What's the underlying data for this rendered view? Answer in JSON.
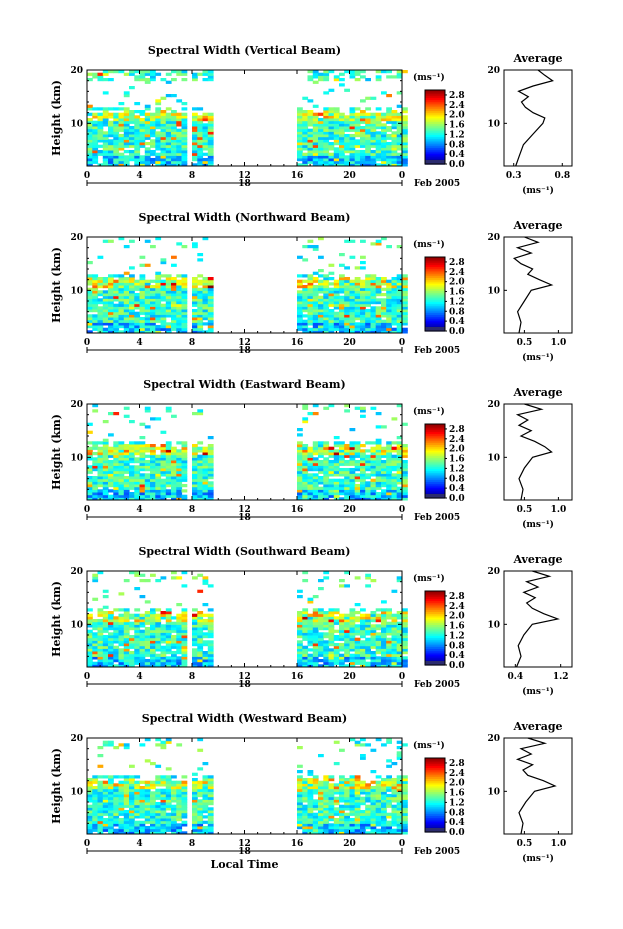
{
  "chart_data": [
    {
      "type": "heatmap",
      "title": "Spectral Width (Vertical Beam)",
      "xlabel": "",
      "ylabel": "Height (km)",
      "xlim": [
        0,
        24
      ],
      "ylim": [
        2,
        20
      ],
      "x_ticks": [
        "0",
        "4",
        "8",
        "12",
        "16",
        "20",
        "0"
      ],
      "y_ticks": [
        "20",
        "10"
      ],
      "date_marker": "18",
      "date_label": "Feb 2005",
      "colorbar": {
        "unit": "(ms⁻¹)",
        "ticks": [
          "2.8",
          "2.4",
          "2.0",
          "1.6",
          "1.2",
          "0.8",
          "0.4",
          "0.0"
        ],
        "range": [
          0,
          3.0
        ]
      },
      "data_gaps_hours": [
        [
          7.8,
          8.1
        ],
        [
          9.7,
          15.9
        ]
      ],
      "average_profile": {
        "title": "Average",
        "xlabel": "(ms⁻¹)",
        "x_ticks": [
          "0.3",
          "0.8"
        ],
        "xlim": [
          0.2,
          0.9
        ],
        "height_km": [
          2,
          4,
          6,
          8,
          10,
          11,
          12,
          13,
          14,
          15,
          16,
          17,
          18,
          19,
          20
        ],
        "values": [
          0.32,
          0.36,
          0.4,
          0.5,
          0.6,
          0.62,
          0.5,
          0.42,
          0.38,
          0.45,
          0.35,
          0.5,
          0.7,
          0.62,
          0.55
        ]
      }
    },
    {
      "type": "heatmap",
      "title": "Spectral Width (Northward Beam)",
      "xlabel": "",
      "ylabel": "Height (km)",
      "xlim": [
        0,
        24
      ],
      "ylim": [
        2,
        20
      ],
      "x_ticks": [
        "0",
        "4",
        "8",
        "12",
        "16",
        "20",
        "0"
      ],
      "y_ticks": [
        "20",
        "10"
      ],
      "date_marker": "18",
      "date_label": "Feb 2005",
      "colorbar": {
        "unit": "(ms⁻¹)",
        "ticks": [
          "2.8",
          "2.4",
          "2.0",
          "1.6",
          "1.2",
          "0.8",
          "0.4",
          "0.0"
        ],
        "range": [
          0,
          3.0
        ]
      },
      "data_gaps_hours": [
        [
          7.8,
          8.1
        ],
        [
          9.7,
          15.9
        ]
      ],
      "average_profile": {
        "title": "Average",
        "xlabel": "(ms⁻¹)",
        "x_ticks": [
          "0.5",
          "1.0"
        ],
        "xlim": [
          0.2,
          1.2
        ],
        "height_km": [
          2,
          4,
          6,
          8,
          10,
          11,
          12,
          13,
          14,
          15,
          16,
          17,
          18,
          19,
          20
        ],
        "values": [
          0.42,
          0.45,
          0.4,
          0.5,
          0.6,
          0.9,
          0.72,
          0.55,
          0.62,
          0.45,
          0.35,
          0.6,
          0.4,
          0.7,
          0.5
        ]
      }
    },
    {
      "type": "heatmap",
      "title": "Spectral Width (Eastward Beam)",
      "xlabel": "",
      "ylabel": "Height (km)",
      "xlim": [
        0,
        24
      ],
      "ylim": [
        2,
        20
      ],
      "x_ticks": [
        "0",
        "4",
        "8",
        "12",
        "16",
        "20",
        "0"
      ],
      "y_ticks": [
        "20",
        "10"
      ],
      "date_marker": "18",
      "date_label": "Feb 2005",
      "colorbar": {
        "unit": "(ms⁻¹)",
        "ticks": [
          "2.8",
          "2.4",
          "2.0",
          "1.6",
          "1.2",
          "0.8",
          "0.4",
          "0.0"
        ],
        "range": [
          0,
          3.0
        ]
      },
      "data_gaps_hours": [
        [
          7.8,
          8.1
        ],
        [
          9.7,
          15.9
        ]
      ],
      "average_profile": {
        "title": "Average",
        "xlabel": "(ms⁻¹)",
        "x_ticks": [
          "0.5",
          "1.0"
        ],
        "xlim": [
          0.2,
          1.2
        ],
        "height_km": [
          2,
          4,
          6,
          8,
          10,
          11,
          12,
          13,
          14,
          15,
          16,
          17,
          18,
          19,
          20
        ],
        "values": [
          0.45,
          0.48,
          0.42,
          0.5,
          0.62,
          0.9,
          0.8,
          0.65,
          0.45,
          0.6,
          0.42,
          0.55,
          0.4,
          0.75,
          0.5
        ]
      }
    },
    {
      "type": "heatmap",
      "title": "Spectral Width (Southward Beam)",
      "xlabel": "",
      "ylabel": "Height (km)",
      "xlim": [
        0,
        24
      ],
      "ylim": [
        2,
        20
      ],
      "x_ticks": [
        "0",
        "4",
        "8",
        "12",
        "16",
        "20",
        "0"
      ],
      "y_ticks": [
        "20",
        "10"
      ],
      "date_marker": "18",
      "date_label": "Feb 2005",
      "colorbar": {
        "unit": "(ms⁻¹)",
        "ticks": [
          "2.8",
          "2.4",
          "2.0",
          "1.6",
          "1.2",
          "0.8",
          "0.4",
          "0.0"
        ],
        "range": [
          0,
          3.0
        ]
      },
      "data_gaps_hours": [
        [
          7.8,
          8.1
        ],
        [
          9.7,
          15.9
        ]
      ],
      "average_profile": {
        "title": "Average",
        "xlabel": "(ms⁻¹)",
        "x_ticks": [
          "0.4",
          "1.2"
        ],
        "xlim": [
          0.2,
          1.4
        ],
        "height_km": [
          2,
          4,
          6,
          8,
          10,
          11,
          12,
          13,
          14,
          15,
          16,
          17,
          18,
          19,
          20
        ],
        "values": [
          0.42,
          0.5,
          0.45,
          0.55,
          0.7,
          1.15,
          0.9,
          0.7,
          0.6,
          0.75,
          0.55,
          0.8,
          0.6,
          1.0,
          0.7
        ]
      }
    },
    {
      "type": "heatmap",
      "title": "Spectral Width (Westward Beam)",
      "xlabel": "Local Time",
      "ylabel": "Height (km)",
      "xlim": [
        0,
        24
      ],
      "ylim": [
        2,
        20
      ],
      "x_ticks": [
        "0",
        "4",
        "8",
        "12",
        "16",
        "20",
        "0"
      ],
      "y_ticks": [
        "20",
        "10"
      ],
      "date_marker": "18",
      "date_label": "Feb 2005",
      "colorbar": {
        "unit": "(ms⁻¹)",
        "ticks": [
          "2.8",
          "2.4",
          "2.0",
          "1.6",
          "1.2",
          "0.8",
          "0.4",
          "0.0"
        ],
        "range": [
          0,
          3.0
        ]
      },
      "data_gaps_hours": [
        [
          7.8,
          8.1
        ],
        [
          9.7,
          15.9
        ]
      ],
      "average_profile": {
        "title": "Average",
        "xlabel": "(ms⁻¹)",
        "x_ticks": [
          "0.5",
          "1.0"
        ],
        "xlim": [
          0.2,
          1.2
        ],
        "height_km": [
          2,
          4,
          6,
          8,
          10,
          11,
          12,
          13,
          14,
          15,
          16,
          17,
          18,
          19,
          20
        ],
        "values": [
          0.45,
          0.48,
          0.42,
          0.52,
          0.65,
          0.95,
          0.78,
          0.55,
          0.48,
          0.62,
          0.4,
          0.6,
          0.45,
          0.8,
          0.55
        ]
      }
    }
  ]
}
